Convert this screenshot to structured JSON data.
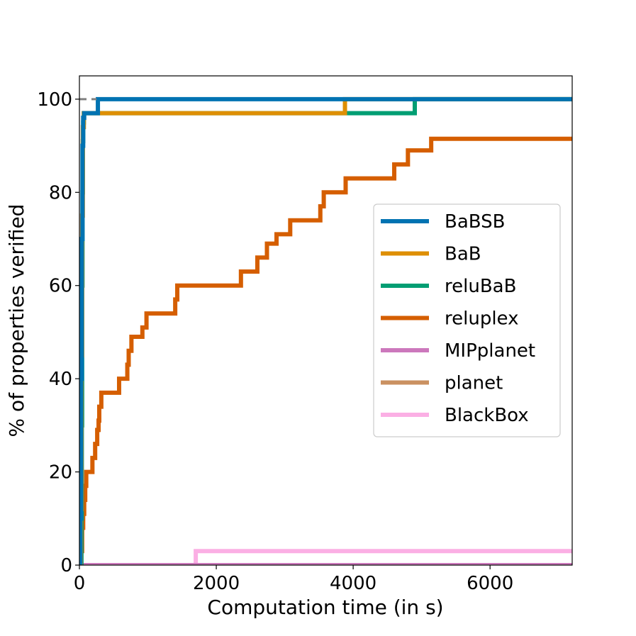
{
  "chart_data": {
    "type": "line",
    "xlabel": "Computation time (in s)",
    "ylabel": "% of properties verified",
    "xlim": [
      0,
      7200
    ],
    "ylim": [
      0,
      105
    ],
    "xticks": [
      0,
      2000,
      4000,
      6000
    ],
    "yticks": [
      0,
      20,
      40,
      60,
      80,
      100
    ],
    "grid": false,
    "legend_position": "center-right",
    "reference_line": {
      "y": 100,
      "x_end": 250,
      "style": "dashed",
      "color": "#808080"
    },
    "series": [
      {
        "name": "BaBSB",
        "color": "#0173b2",
        "points": [
          [
            0,
            0
          ],
          [
            15,
            0
          ],
          [
            15,
            10
          ],
          [
            25,
            10
          ],
          [
            25,
            40
          ],
          [
            35,
            40
          ],
          [
            35,
            70
          ],
          [
            45,
            70
          ],
          [
            45,
            90
          ],
          [
            55,
            90
          ],
          [
            55,
            96
          ],
          [
            70,
            96
          ],
          [
            70,
            97
          ],
          [
            270,
            97
          ],
          [
            270,
            100
          ],
          [
            7200,
            100
          ]
        ]
      },
      {
        "name": "BaB",
        "color": "#de8f05",
        "points": [
          [
            0,
            0
          ],
          [
            20,
            0
          ],
          [
            20,
            12
          ],
          [
            30,
            12
          ],
          [
            30,
            45
          ],
          [
            40,
            45
          ],
          [
            40,
            75
          ],
          [
            50,
            75
          ],
          [
            50,
            94
          ],
          [
            65,
            94
          ],
          [
            65,
            97
          ],
          [
            3880,
            97
          ],
          [
            3880,
            100
          ],
          [
            7200,
            100
          ]
        ]
      },
      {
        "name": "reluBaB",
        "color": "#029e73",
        "points": [
          [
            0,
            0
          ],
          [
            30,
            0
          ],
          [
            30,
            10
          ],
          [
            35,
            10
          ],
          [
            35,
            30
          ],
          [
            40,
            30
          ],
          [
            40,
            60
          ],
          [
            45,
            60
          ],
          [
            45,
            80
          ],
          [
            50,
            80
          ],
          [
            50,
            91
          ],
          [
            55,
            91
          ],
          [
            55,
            95
          ],
          [
            65,
            95
          ],
          [
            65,
            97
          ],
          [
            4900,
            97
          ],
          [
            4900,
            100
          ],
          [
            7200,
            100
          ]
        ]
      },
      {
        "name": "reluplex",
        "color": "#d55e00",
        "points": [
          [
            0,
            0
          ],
          [
            20,
            0
          ],
          [
            20,
            3
          ],
          [
            40,
            3
          ],
          [
            40,
            8
          ],
          [
            55,
            8
          ],
          [
            55,
            11
          ],
          [
            70,
            11
          ],
          [
            70,
            14
          ],
          [
            85,
            14
          ],
          [
            85,
            17
          ],
          [
            100,
            17
          ],
          [
            100,
            20
          ],
          [
            190,
            20
          ],
          [
            190,
            23
          ],
          [
            230,
            23
          ],
          [
            230,
            26
          ],
          [
            260,
            26
          ],
          [
            260,
            29
          ],
          [
            280,
            29
          ],
          [
            280,
            31
          ],
          [
            290,
            31
          ],
          [
            290,
            34
          ],
          [
            320,
            34
          ],
          [
            320,
            37
          ],
          [
            580,
            37
          ],
          [
            580,
            40
          ],
          [
            700,
            40
          ],
          [
            700,
            43
          ],
          [
            720,
            43
          ],
          [
            720,
            46
          ],
          [
            760,
            46
          ],
          [
            760,
            49
          ],
          [
            920,
            49
          ],
          [
            920,
            51
          ],
          [
            980,
            51
          ],
          [
            980,
            54
          ],
          [
            1400,
            54
          ],
          [
            1400,
            57
          ],
          [
            1430,
            57
          ],
          [
            1430,
            60
          ],
          [
            2360,
            60
          ],
          [
            2360,
            63
          ],
          [
            2600,
            63
          ],
          [
            2600,
            66
          ],
          [
            2740,
            66
          ],
          [
            2740,
            69
          ],
          [
            2880,
            69
          ],
          [
            2880,
            71
          ],
          [
            3080,
            71
          ],
          [
            3080,
            74
          ],
          [
            3520,
            74
          ],
          [
            3520,
            77
          ],
          [
            3570,
            77
          ],
          [
            3570,
            80
          ],
          [
            3890,
            80
          ],
          [
            3890,
            83
          ],
          [
            4600,
            83
          ],
          [
            4600,
            86
          ],
          [
            4800,
            86
          ],
          [
            4800,
            89
          ],
          [
            5140,
            89
          ],
          [
            5140,
            91.5
          ],
          [
            7200,
            91.5
          ]
        ]
      },
      {
        "name": "MIPplanet",
        "color": "#cc78bc",
        "points": [
          [
            0,
            0
          ],
          [
            7200,
            0
          ]
        ]
      },
      {
        "name": "planet",
        "color": "#ca9161",
        "points": [
          [
            0,
            0
          ],
          [
            7200,
            0
          ]
        ]
      },
      {
        "name": "BlackBox",
        "color": "#fbafe4",
        "points": [
          [
            0,
            0
          ],
          [
            1700,
            0
          ],
          [
            1700,
            3
          ],
          [
            7200,
            3
          ]
        ]
      }
    ]
  }
}
